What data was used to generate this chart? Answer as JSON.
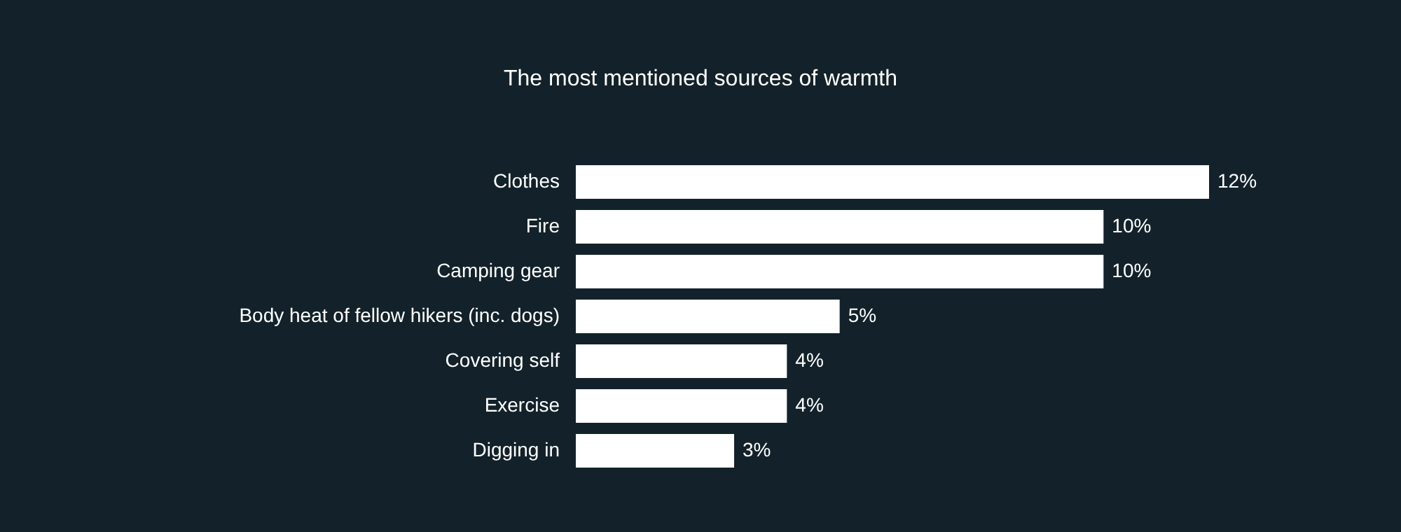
{
  "chart_data": {
    "type": "bar",
    "orientation": "horizontal",
    "title": "The most mentioned sources of warmth",
    "categories": [
      "Clothes",
      "Fire",
      "Camping gear",
      "Body heat of fellow hikers (inc. dogs)",
      "Covering self",
      "Exercise",
      "Digging in"
    ],
    "values": [
      12,
      10,
      10,
      5,
      4,
      4,
      3
    ],
    "value_labels": [
      "12%",
      "10%",
      "10%",
      "5%",
      "4%",
      "4%",
      "3%"
    ],
    "color": "#ffffff",
    "grid": false
  }
}
